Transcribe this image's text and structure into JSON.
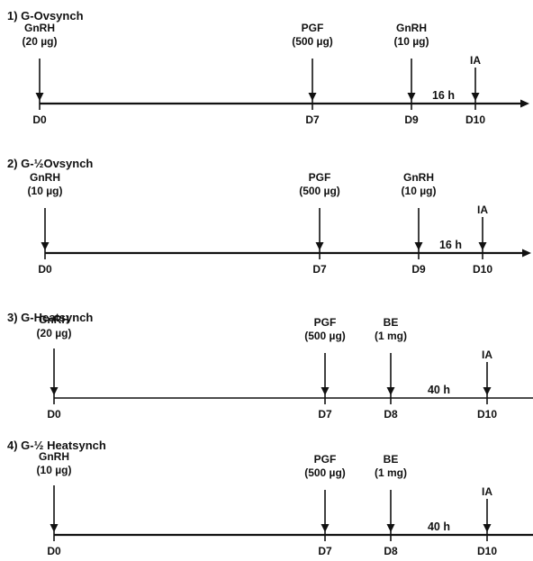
{
  "colors": {
    "line": "#111111",
    "background": "#ffffff"
  },
  "protocols": [
    {
      "title": "1) G-Ovsynch",
      "interval": {
        "label": "16 h"
      },
      "events": [
        {
          "day": 0,
          "day_label": "D0",
          "name": "GnRH",
          "dose": "(20 µg)"
        },
        {
          "day": 7,
          "day_label": "D7",
          "name": "PGF",
          "dose": "(500 µg)"
        },
        {
          "day": 9,
          "day_label": "D9",
          "name": "GnRH",
          "dose": "(10 µg)"
        },
        {
          "day": 10,
          "day_label": "D10",
          "name": "IA",
          "dose": ""
        }
      ]
    },
    {
      "title": "2) G-½Ovsynch",
      "interval": {
        "label": "16 h"
      },
      "events": [
        {
          "day": 0,
          "day_label": "D0",
          "name": "GnRH",
          "dose": "(10 µg)"
        },
        {
          "day": 7,
          "day_label": "D7",
          "name": "PGF",
          "dose": "(500 µg)"
        },
        {
          "day": 9,
          "day_label": "D9",
          "name": "GnRH",
          "dose": "(10 µg)"
        },
        {
          "day": 10,
          "day_label": "D10",
          "name": "IA",
          "dose": ""
        }
      ]
    },
    {
      "title": "3) G-Heatsynch",
      "interval": {
        "label": "40 h"
      },
      "events": [
        {
          "day": 0,
          "day_label": "D0",
          "name": "GnRH",
          "dose": "(20 µg)"
        },
        {
          "day": 7,
          "day_label": "D7",
          "name": "PGF",
          "dose": "(500 µg)"
        },
        {
          "day": 8,
          "day_label": "D8",
          "name": "BE",
          "dose": "(1 mg)"
        },
        {
          "day": 10,
          "day_label": "D10",
          "name": "IA",
          "dose": ""
        }
      ]
    },
    {
      "title": "4) G-½ Heatsynch",
      "interval": {
        "label": "40 h"
      },
      "events": [
        {
          "day": 0,
          "day_label": "D0",
          "name": "GnRH",
          "dose": "(10 µg)"
        },
        {
          "day": 7,
          "day_label": "D7",
          "name": "PGF",
          "dose": "(500 µg)"
        },
        {
          "day": 8,
          "day_label": "D8",
          "name": "BE",
          "dose": "(1 mg)"
        },
        {
          "day": 10,
          "day_label": "D10",
          "name": "IA",
          "dose": ""
        }
      ]
    }
  ]
}
